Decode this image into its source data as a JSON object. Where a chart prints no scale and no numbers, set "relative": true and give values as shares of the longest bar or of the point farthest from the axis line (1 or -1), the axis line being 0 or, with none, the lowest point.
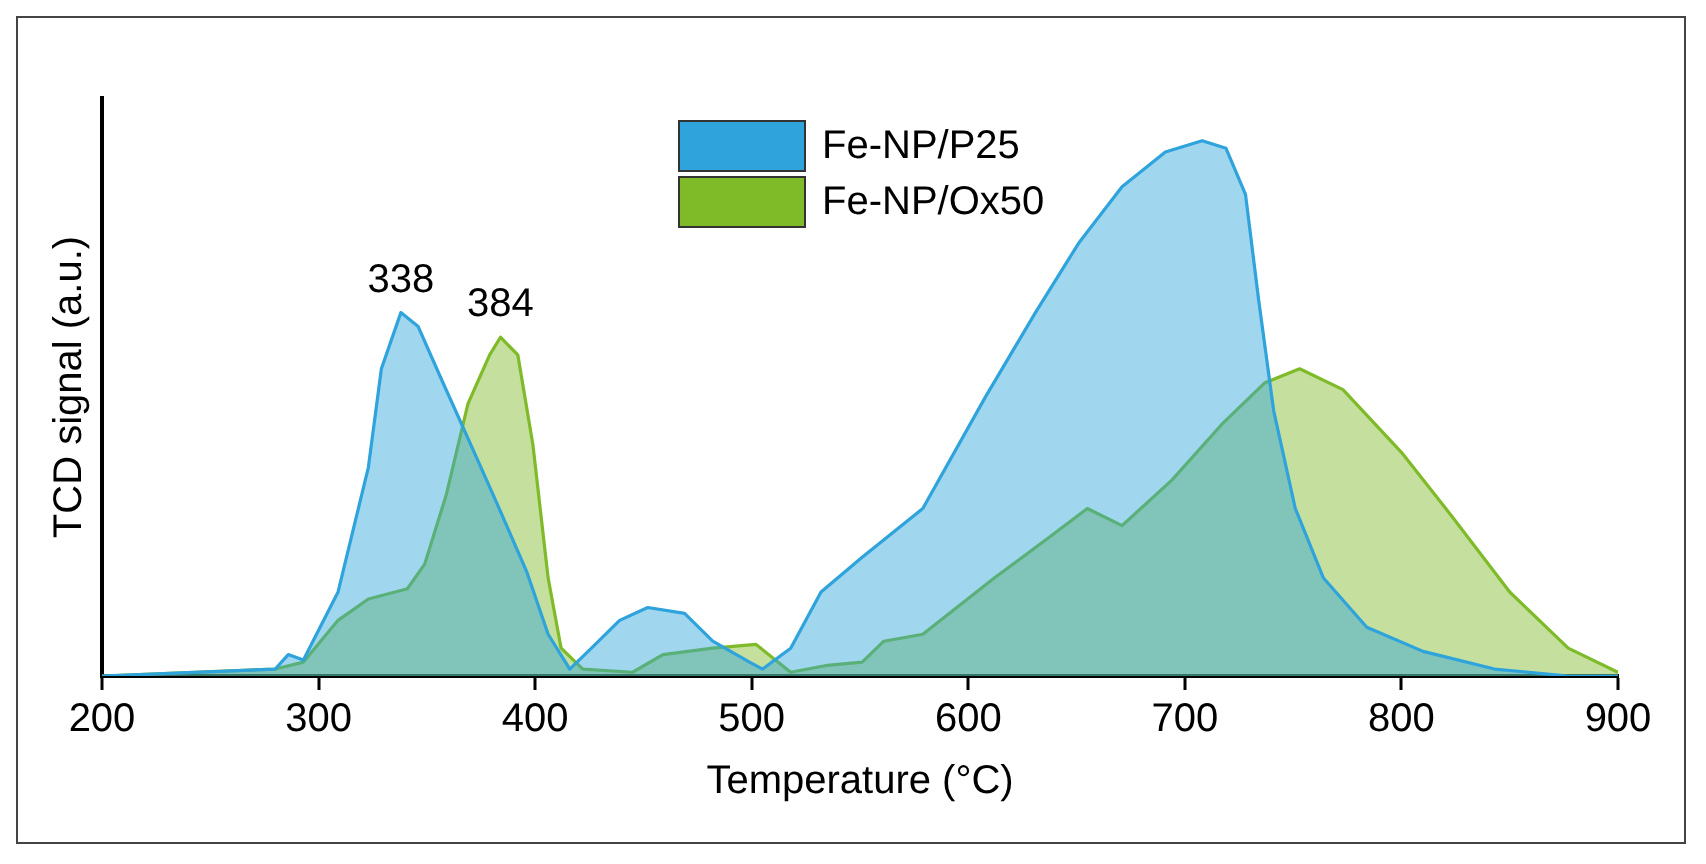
{
  "chart_data": {
    "type": "area",
    "relative": true,
    "xlabel": "Temperature (°C)",
    "ylabel": "TCD signal (a.u.)",
    "xlim": [
      200,
      900
    ],
    "xticks": [
      200,
      300,
      400,
      500,
      600,
      700,
      800,
      900
    ],
    "grid": false,
    "legend": "top",
    "marker": "none",
    "line_style": "solid",
    "annotations": [
      {
        "text": "338",
        "x": 338,
        "y": 0.679
      },
      {
        "text": "384",
        "x": 384,
        "y": 0.633
      }
    ],
    "series": [
      {
        "name": "Fe-NP/P25",
        "color": "#2ea3dc",
        "x": [
          200,
          280,
          286,
          293,
          309,
          323,
          329,
          338,
          346,
          356,
          369,
          382,
          396,
          406,
          416,
          426,
          439,
          452,
          469,
          482,
          499,
          505,
          518,
          532,
          551,
          579,
          608,
          631,
          651,
          671,
          691,
          708,
          719,
          728,
          734,
          741,
          751,
          764,
          784,
          810,
          843,
          877,
          900
        ],
        "values": [
          0,
          0.013,
          0.04,
          0.03,
          0.157,
          0.39,
          0.574,
          0.679,
          0.653,
          0.561,
          0.444,
          0.326,
          0.196,
          0.078,
          0.013,
          0.052,
          0.104,
          0.128,
          0.117,
          0.065,
          0.026,
          0.013,
          0.052,
          0.157,
          0.222,
          0.313,
          0.522,
          0.679,
          0.809,
          0.914,
          0.979,
          1,
          0.986,
          0.9,
          0.705,
          0.496,
          0.313,
          0.183,
          0.091,
          0.046,
          0.013,
          0,
          0
        ]
      },
      {
        "name": "Fe-NP/Ox50",
        "color": "#7fba28",
        "x": [
          200,
          280,
          293,
          309,
          323,
          341,
          349,
          359,
          369,
          379,
          384,
          392,
          399,
          406,
          412,
          422,
          445,
          459,
          482,
          502,
          518,
          535,
          551,
          561,
          579,
          612,
          638,
          655,
          671,
          694,
          717,
          737,
          753,
          773,
          800,
          823,
          850,
          877,
          900
        ],
        "values": [
          0,
          0.013,
          0.026,
          0.104,
          0.144,
          0.163,
          0.209,
          0.339,
          0.509,
          0.6,
          0.633,
          0.6,
          0.431,
          0.183,
          0.052,
          0.013,
          0.007,
          0.04,
          0.052,
          0.059,
          0.007,
          0.02,
          0.026,
          0.065,
          0.078,
          0.183,
          0.261,
          0.313,
          0.281,
          0.366,
          0.47,
          0.548,
          0.574,
          0.535,
          0.418,
          0.3,
          0.157,
          0.052,
          0.007
        ]
      }
    ]
  }
}
